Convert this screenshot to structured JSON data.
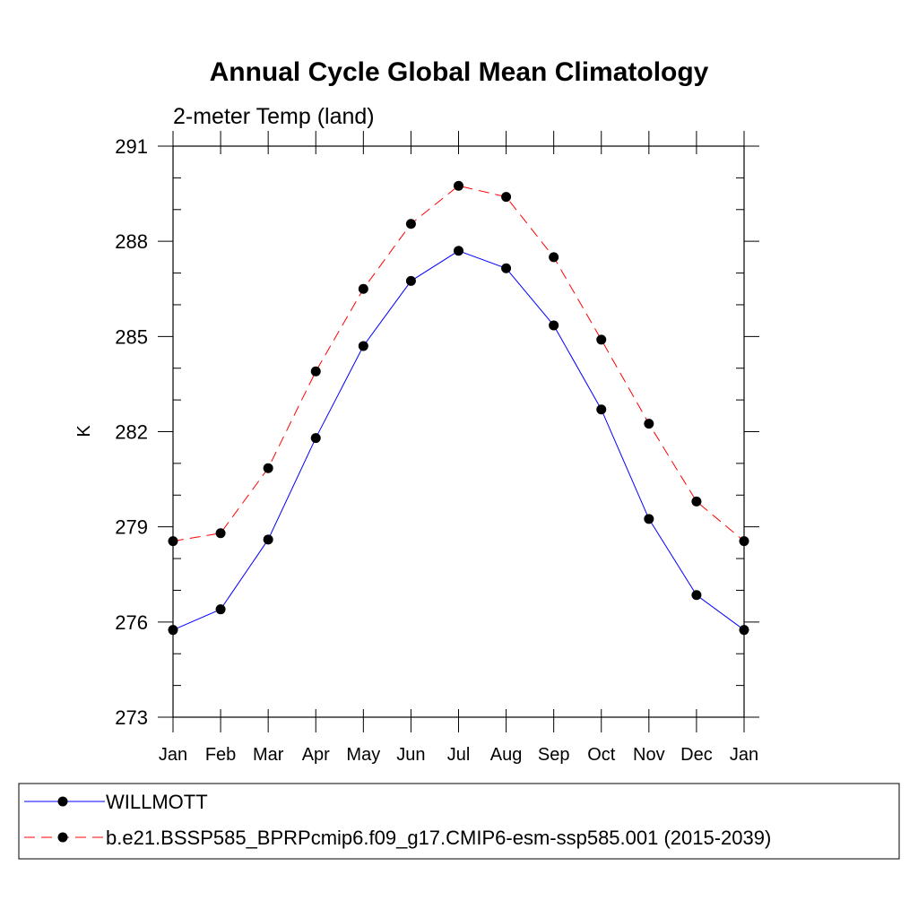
{
  "chart_data": {
    "type": "line",
    "title": "Annual Cycle Global Mean Climatology",
    "subtitle": "2-meter Temp (land)",
    "xlabel": "",
    "ylabel": "K",
    "ylim": [
      273,
      291
    ],
    "yticks": [
      273,
      276,
      279,
      282,
      285,
      288,
      291
    ],
    "categories": [
      "Jan",
      "Feb",
      "Mar",
      "Apr",
      "May",
      "Jun",
      "Jul",
      "Aug",
      "Sep",
      "Oct",
      "Nov",
      "Dec",
      "Jan"
    ],
    "grid": false,
    "legend_position": "bottom",
    "series": [
      {
        "name": "WILLMOTT",
        "color": "#0000ff",
        "line_style": "solid",
        "marker": "filled-circle",
        "values": [
          275.75,
          276.4,
          278.6,
          281.8,
          284.7,
          286.75,
          287.7,
          287.15,
          285.35,
          282.7,
          279.25,
          276.85,
          275.75
        ]
      },
      {
        "name": "b.e21.BSSP585_BPRPcmip6.f09_g17.CMIP6-esm-ssp585.001 (2015-2039)",
        "color": "#ff0000",
        "line_style": "dashed",
        "marker": "filled-circle",
        "values": [
          278.55,
          278.8,
          280.85,
          283.9,
          286.5,
          288.55,
          289.75,
          289.4,
          287.5,
          284.9,
          282.25,
          279.8,
          278.55
        ]
      }
    ]
  }
}
